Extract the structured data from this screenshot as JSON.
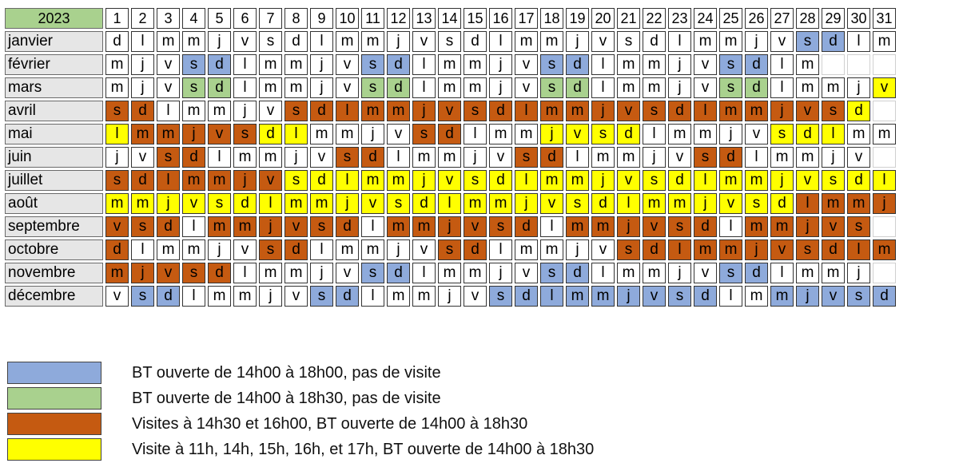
{
  "year": "2023",
  "days": [
    "1",
    "2",
    "3",
    "4",
    "5",
    "6",
    "7",
    "8",
    "9",
    "10",
    "11",
    "12",
    "13",
    "14",
    "15",
    "16",
    "17",
    "18",
    "19",
    "20",
    "21",
    "22",
    "23",
    "24",
    "25",
    "26",
    "27",
    "28",
    "29",
    "30",
    "31"
  ],
  "colors": {
    "w": "#ffffff",
    "b": "#8eaadb",
    "g": "#a9d18e",
    "o": "#c55a11",
    "y": "#ffff00",
    "e": "#ffffff"
  },
  "months": [
    {
      "name": "janvier",
      "letters": [
        "d",
        "l",
        "m",
        "m",
        "j",
        "v",
        "s",
        "d",
        "l",
        "m",
        "m",
        "j",
        "v",
        "s",
        "d",
        "l",
        "m",
        "m",
        "j",
        "v",
        "s",
        "d",
        "l",
        "m",
        "m",
        "j",
        "v",
        "s",
        "d",
        "l",
        "m"
      ],
      "cats": [
        "w",
        "w",
        "w",
        "w",
        "w",
        "w",
        "w",
        "w",
        "w",
        "w",
        "w",
        "w",
        "w",
        "w",
        "w",
        "w",
        "w",
        "w",
        "w",
        "w",
        "w",
        "w",
        "w",
        "w",
        "w",
        "w",
        "w",
        "b",
        "b",
        "w",
        "w"
      ]
    },
    {
      "name": "février",
      "letters": [
        "m",
        "j",
        "v",
        "s",
        "d",
        "l",
        "m",
        "m",
        "j",
        "v",
        "s",
        "d",
        "l",
        "m",
        "m",
        "j",
        "v",
        "s",
        "d",
        "l",
        "m",
        "m",
        "j",
        "v",
        "s",
        "d",
        "l",
        "m",
        "",
        "",
        ""
      ],
      "cats": [
        "w",
        "w",
        "w",
        "b",
        "b",
        "w",
        "w",
        "w",
        "w",
        "w",
        "b",
        "b",
        "w",
        "w",
        "w",
        "w",
        "w",
        "b",
        "b",
        "w",
        "w",
        "w",
        "w",
        "w",
        "b",
        "b",
        "w",
        "w",
        "e",
        "e",
        "e"
      ]
    },
    {
      "name": "mars",
      "letters": [
        "m",
        "j",
        "v",
        "s",
        "d",
        "l",
        "m",
        "m",
        "j",
        "v",
        "s",
        "d",
        "l",
        "m",
        "m",
        "j",
        "v",
        "s",
        "d",
        "l",
        "m",
        "m",
        "j",
        "v",
        "s",
        "d",
        "l",
        "m",
        "m",
        "j",
        "v"
      ],
      "cats": [
        "w",
        "w",
        "w",
        "g",
        "g",
        "w",
        "w",
        "w",
        "w",
        "w",
        "g",
        "g",
        "w",
        "w",
        "w",
        "w",
        "w",
        "g",
        "g",
        "w",
        "w",
        "w",
        "w",
        "w",
        "g",
        "g",
        "w",
        "w",
        "w",
        "w",
        "y"
      ]
    },
    {
      "name": "avril",
      "letters": [
        "s",
        "d",
        "l",
        "m",
        "m",
        "j",
        "v",
        "s",
        "d",
        "l",
        "m",
        "m",
        "j",
        "v",
        "s",
        "d",
        "l",
        "m",
        "m",
        "j",
        "v",
        "s",
        "d",
        "l",
        "m",
        "m",
        "j",
        "v",
        "s",
        "d",
        ""
      ],
      "cats": [
        "o",
        "o",
        "w",
        "w",
        "w",
        "w",
        "w",
        "o",
        "o",
        "o",
        "o",
        "o",
        "o",
        "o",
        "o",
        "o",
        "o",
        "o",
        "o",
        "o",
        "o",
        "o",
        "o",
        "o",
        "o",
        "o",
        "o",
        "o",
        "o",
        "y",
        "e"
      ]
    },
    {
      "name": "mai",
      "letters": [
        "l",
        "m",
        "m",
        "j",
        "v",
        "s",
        "d",
        "l",
        "m",
        "m",
        "j",
        "v",
        "s",
        "d",
        "l",
        "m",
        "m",
        "j",
        "v",
        "s",
        "d",
        "l",
        "m",
        "m",
        "j",
        "v",
        "s",
        "d",
        "l",
        "m",
        "m"
      ],
      "cats": [
        "y",
        "o",
        "o",
        "o",
        "o",
        "o",
        "y",
        "y",
        "w",
        "w",
        "w",
        "w",
        "o",
        "o",
        "w",
        "w",
        "w",
        "y",
        "y",
        "y",
        "y",
        "w",
        "w",
        "w",
        "w",
        "w",
        "y",
        "y",
        "y",
        "w",
        "w"
      ]
    },
    {
      "name": "juin",
      "letters": [
        "j",
        "v",
        "s",
        "d",
        "l",
        "m",
        "m",
        "j",
        "v",
        "s",
        "d",
        "l",
        "m",
        "m",
        "j",
        "v",
        "s",
        "d",
        "l",
        "m",
        "m",
        "j",
        "v",
        "s",
        "d",
        "l",
        "m",
        "m",
        "j",
        "v",
        ""
      ],
      "cats": [
        "w",
        "w",
        "o",
        "o",
        "w",
        "w",
        "w",
        "w",
        "w",
        "o",
        "o",
        "w",
        "w",
        "w",
        "w",
        "w",
        "o",
        "o",
        "w",
        "w",
        "w",
        "w",
        "w",
        "o",
        "o",
        "w",
        "w",
        "w",
        "w",
        "w",
        "e"
      ]
    },
    {
      "name": "juillet",
      "letters": [
        "s",
        "d",
        "l",
        "m",
        "m",
        "j",
        "v",
        "s",
        "d",
        "l",
        "m",
        "m",
        "j",
        "v",
        "s",
        "d",
        "l",
        "m",
        "m",
        "j",
        "v",
        "s",
        "d",
        "l",
        "m",
        "m",
        "j",
        "v",
        "s",
        "d",
        "l"
      ],
      "cats": [
        "o",
        "o",
        "o",
        "o",
        "o",
        "o",
        "o",
        "y",
        "y",
        "y",
        "y",
        "y",
        "y",
        "y",
        "y",
        "y",
        "y",
        "y",
        "y",
        "y",
        "y",
        "y",
        "y",
        "y",
        "y",
        "y",
        "y",
        "y",
        "y",
        "y",
        "y"
      ]
    },
    {
      "name": "août",
      "letters": [
        "m",
        "m",
        "j",
        "v",
        "s",
        "d",
        "l",
        "m",
        "m",
        "j",
        "v",
        "s",
        "d",
        "l",
        "m",
        "m",
        "j",
        "v",
        "s",
        "d",
        "l",
        "m",
        "m",
        "j",
        "v",
        "s",
        "d",
        "l",
        "m",
        "m",
        "j"
      ],
      "cats": [
        "y",
        "y",
        "y",
        "y",
        "y",
        "y",
        "y",
        "y",
        "y",
        "y",
        "y",
        "y",
        "y",
        "y",
        "y",
        "y",
        "y",
        "y",
        "y",
        "y",
        "y",
        "y",
        "y",
        "y",
        "y",
        "y",
        "y",
        "o",
        "o",
        "o",
        "o"
      ]
    },
    {
      "name": "septembre",
      "letters": [
        "v",
        "s",
        "d",
        "l",
        "m",
        "m",
        "j",
        "v",
        "s",
        "d",
        "l",
        "m",
        "m",
        "j",
        "v",
        "s",
        "d",
        "l",
        "m",
        "m",
        "j",
        "v",
        "s",
        "d",
        "l",
        "m",
        "m",
        "j",
        "v",
        "s",
        ""
      ],
      "cats": [
        "o",
        "o",
        "o",
        "w",
        "o",
        "o",
        "o",
        "o",
        "o",
        "o",
        "w",
        "o",
        "o",
        "o",
        "o",
        "o",
        "o",
        "w",
        "o",
        "o",
        "o",
        "o",
        "o",
        "o",
        "w",
        "o",
        "o",
        "o",
        "o",
        "o",
        "e"
      ]
    },
    {
      "name": "octobre",
      "letters": [
        "d",
        "l",
        "m",
        "m",
        "j",
        "v",
        "s",
        "d",
        "l",
        "m",
        "m",
        "j",
        "v",
        "s",
        "d",
        "l",
        "m",
        "m",
        "j",
        "v",
        "s",
        "d",
        "l",
        "m",
        "m",
        "j",
        "v",
        "s",
        "d",
        "l",
        "m"
      ],
      "cats": [
        "o",
        "w",
        "w",
        "w",
        "w",
        "w",
        "o",
        "o",
        "w",
        "w",
        "w",
        "w",
        "w",
        "o",
        "o",
        "w",
        "w",
        "w",
        "w",
        "w",
        "o",
        "o",
        "o",
        "o",
        "o",
        "o",
        "o",
        "o",
        "o",
        "o",
        "o"
      ]
    },
    {
      "name": "novembre",
      "letters": [
        "m",
        "j",
        "v",
        "s",
        "d",
        "l",
        "m",
        "m",
        "j",
        "v",
        "s",
        "d",
        "l",
        "m",
        "m",
        "j",
        "v",
        "s",
        "d",
        "l",
        "m",
        "m",
        "j",
        "v",
        "s",
        "d",
        "l",
        "m",
        "m",
        "j",
        ""
      ],
      "cats": [
        "o",
        "o",
        "o",
        "o",
        "o",
        "w",
        "w",
        "w",
        "w",
        "w",
        "b",
        "b",
        "w",
        "w",
        "w",
        "w",
        "w",
        "b",
        "b",
        "w",
        "w",
        "w",
        "w",
        "w",
        "b",
        "b",
        "w",
        "w",
        "w",
        "w",
        "e"
      ]
    },
    {
      "name": "décembre",
      "letters": [
        "v",
        "s",
        "d",
        "l",
        "m",
        "m",
        "j",
        "v",
        "s",
        "d",
        "l",
        "m",
        "m",
        "j",
        "v",
        "s",
        "d",
        "l",
        "m",
        "m",
        "j",
        "v",
        "s",
        "d",
        "l",
        "m",
        "m",
        "j",
        "v",
        "s",
        "d"
      ],
      "cats": [
        "w",
        "b",
        "b",
        "w",
        "w",
        "w",
        "w",
        "w",
        "b",
        "b",
        "w",
        "w",
        "w",
        "w",
        "w",
        "b",
        "b",
        "b",
        "b",
        "b",
        "b",
        "b",
        "b",
        "b",
        "w",
        "w",
        "b",
        "b",
        "b",
        "b",
        "b"
      ]
    }
  ],
  "legend": [
    {
      "color": "#8eaadb",
      "label": "BT ouverte de 14h00 à 18h00, pas de visite"
    },
    {
      "color": "#a9d18e",
      "label": "BT ouverte de 14h00 à 18h30, pas de visite"
    },
    {
      "color": "#c55a11",
      "label": "Visites à 14h30 et 16h00, BT ouverte de 14h00 à 18h30"
    },
    {
      "color": "#ffff00",
      "label": "Visite à 11h,  14h, 15h, 16h, et 17h, BT ouverte de 14h00 à 18h30"
    }
  ]
}
